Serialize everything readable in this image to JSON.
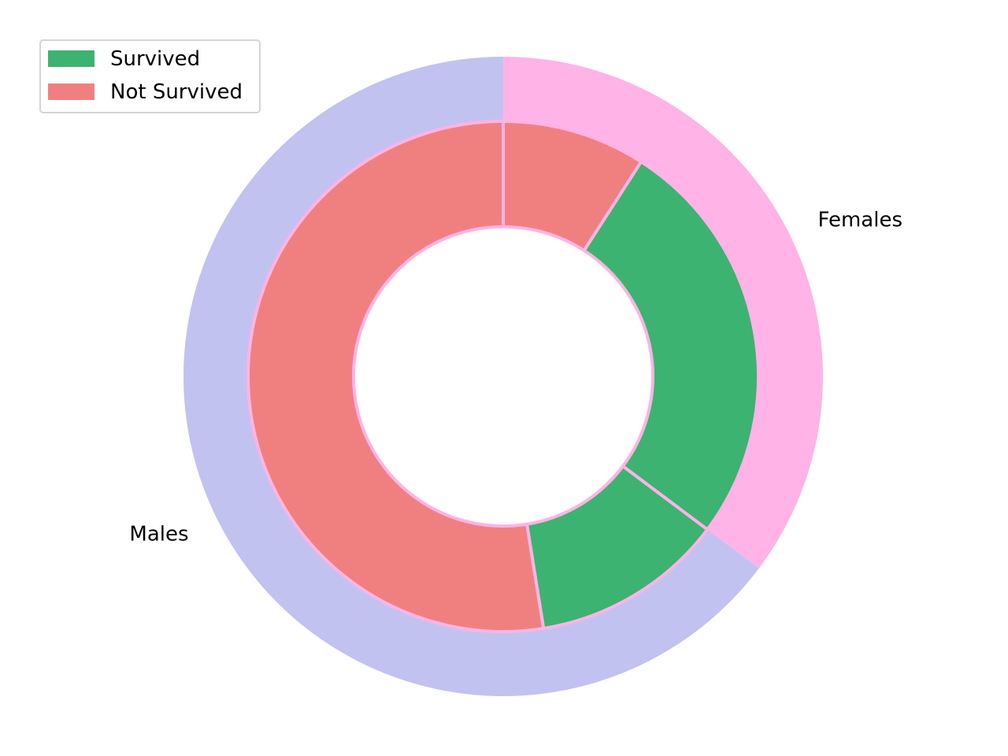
{
  "chart_data": {
    "type": "pie",
    "variant": "nested-donut",
    "outer": {
      "categories": [
        "Females",
        "Males"
      ],
      "values": [
        314,
        577
      ],
      "colors": [
        "#ffb3e6",
        "#c2c2f0"
      ]
    },
    "inner": {
      "categories": [
        "Not Survived",
        "Survived",
        "Survived",
        "Not Survived"
      ],
      "groups": [
        "Females",
        "Females",
        "Males",
        "Males"
      ],
      "values": [
        81,
        233,
        109,
        468
      ],
      "colors": [
        "#f08080",
        "#3cb371",
        "#3cb371",
        "#f08080"
      ]
    },
    "legend": {
      "position": "top-left",
      "entries": [
        {
          "label": "Survived",
          "color": "#3cb371"
        },
        {
          "label": "Not Survived",
          "color": "#f08080"
        }
      ]
    },
    "start_angle_deg": 90,
    "direction": "clockwise"
  }
}
